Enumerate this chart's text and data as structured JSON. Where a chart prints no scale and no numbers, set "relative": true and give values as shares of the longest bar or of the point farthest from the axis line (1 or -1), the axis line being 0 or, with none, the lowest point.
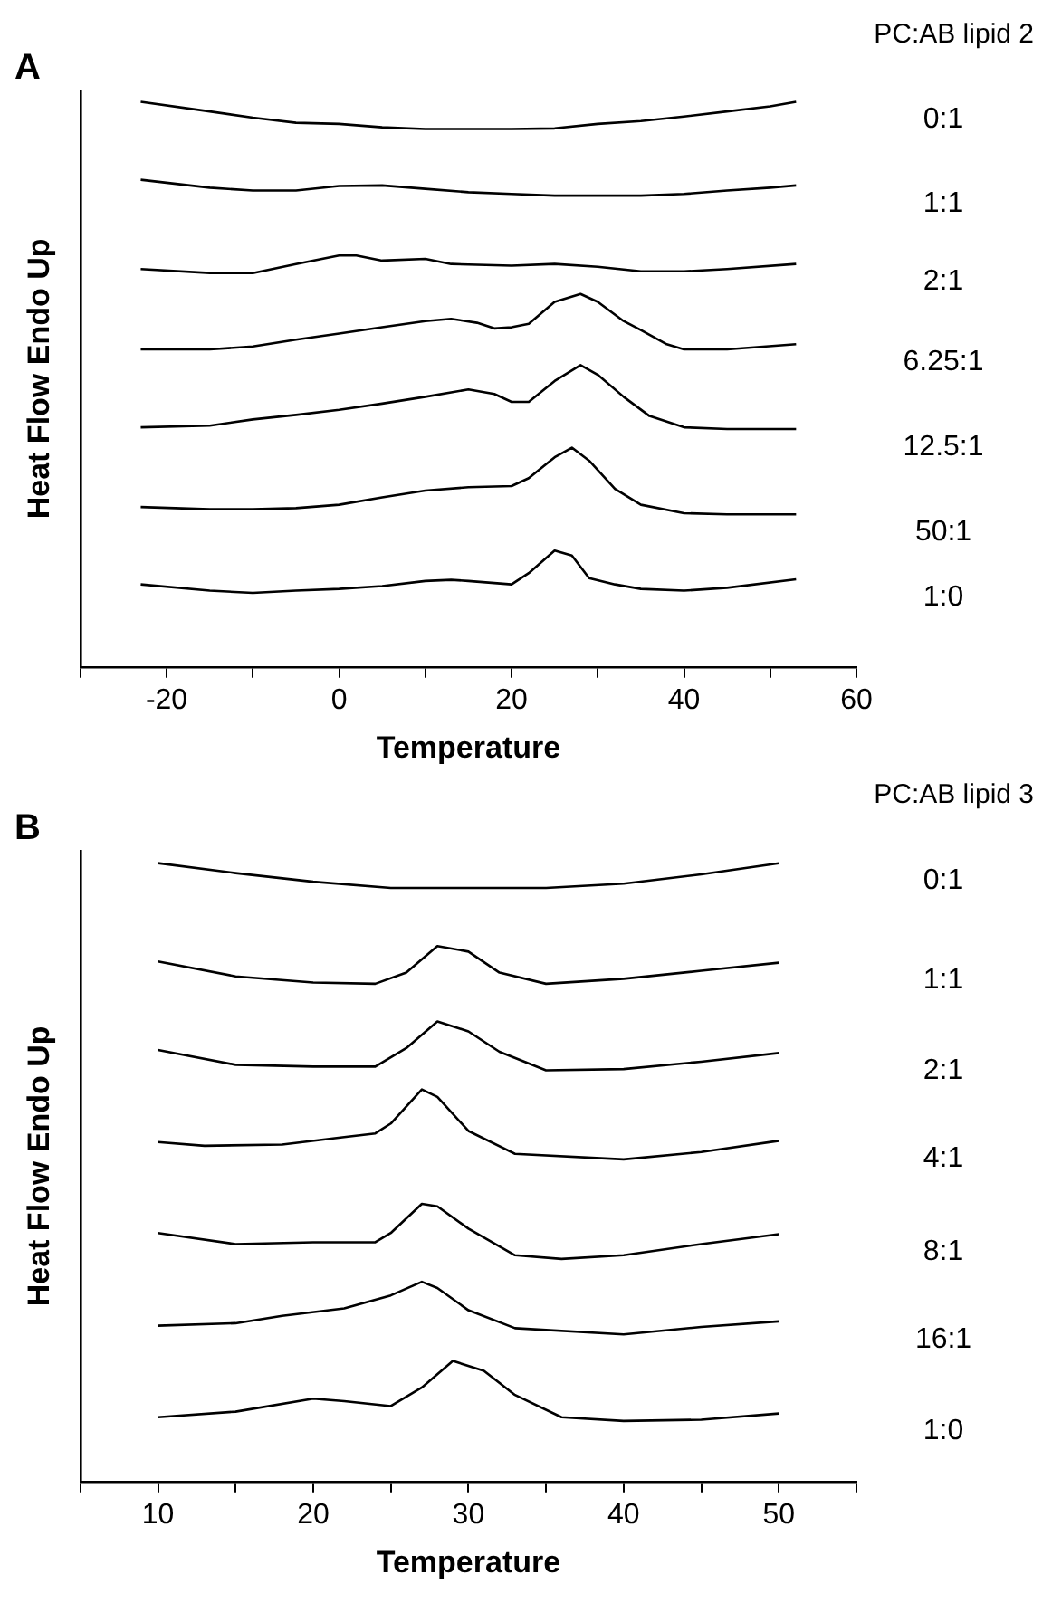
{
  "chart_data": [
    {
      "type": "line",
      "title": "A",
      "legend_title": "PC:AB lipid 2",
      "xlabel": "Temperature",
      "ylabel": "Heat Flow Endo Up",
      "relative": true,
      "marker": "none",
      "legend": false,
      "xlim": [
        -30,
        60
      ],
      "xticks": [
        {
          "value": -30,
          "label": null
        },
        -20,
        {
          "value": -10,
          "label": null
        },
        0,
        {
          "value": 10,
          "label": null
        },
        20,
        {
          "value": 30,
          "label": null
        },
        40,
        {
          "value": 50,
          "label": null
        },
        60
      ],
      "series": [
        {
          "name": "0:1",
          "color": "#000000",
          "x": [
            -23,
            -15,
            -10,
            -5,
            0,
            5,
            10,
            15,
            20,
            25,
            30,
            35,
            40,
            45,
            50,
            53
          ],
          "values": [
            1.0,
            0.983,
            0.972,
            0.963,
            0.961,
            0.955,
            0.952,
            0.952,
            0.952,
            0.953,
            0.961,
            0.966,
            0.974,
            0.983,
            0.992,
            1.0
          ]
        },
        {
          "name": "1:1",
          "color": "#000000",
          "x": [
            -23,
            -15,
            -10,
            -5,
            0,
            5,
            10,
            15,
            20,
            25,
            30,
            35,
            40,
            45,
            50,
            53
          ],
          "values": [
            0.862,
            0.848,
            0.843,
            0.843,
            0.851,
            0.852,
            0.846,
            0.84,
            0.837,
            0.834,
            0.834,
            0.834,
            0.837,
            0.843,
            0.848,
            0.852
          ]
        },
        {
          "name": "2:1",
          "color": "#000000",
          "x": [
            -23,
            -15,
            -10,
            -5,
            0,
            2,
            5,
            10,
            13,
            20,
            25,
            30,
            35,
            40,
            45,
            53
          ],
          "values": [
            0.704,
            0.697,
            0.697,
            0.713,
            0.728,
            0.728,
            0.719,
            0.722,
            0.713,
            0.71,
            0.713,
            0.708,
            0.7,
            0.7,
            0.704,
            0.713
          ]
        },
        {
          "name": "6.25:1",
          "color": "#000000",
          "x": [
            -23,
            -15,
            -10,
            -5,
            0,
            5,
            10,
            13,
            16,
            18,
            20,
            22,
            25,
            28,
            30,
            33,
            35,
            38,
            40,
            45,
            53
          ],
          "values": [
            0.562,
            0.562,
            0.567,
            0.579,
            0.59,
            0.601,
            0.612,
            0.616,
            0.609,
            0.599,
            0.601,
            0.607,
            0.646,
            0.66,
            0.646,
            0.612,
            0.596,
            0.571,
            0.562,
            0.562,
            0.571
          ]
        },
        {
          "name": "12.5:1",
          "color": "#000000",
          "x": [
            -23,
            -15,
            -10,
            -5,
            0,
            5,
            10,
            15,
            18,
            20,
            22,
            25,
            28,
            30,
            33,
            36,
            40,
            45,
            53
          ],
          "values": [
            0.424,
            0.427,
            0.438,
            0.446,
            0.455,
            0.466,
            0.478,
            0.491,
            0.483,
            0.469,
            0.469,
            0.506,
            0.534,
            0.517,
            0.478,
            0.444,
            0.424,
            0.421,
            0.421
          ]
        },
        {
          "name": "50:1",
          "color": "#000000",
          "x": [
            -23,
            -15,
            -10,
            -5,
            0,
            5,
            10,
            15,
            20,
            22,
            25,
            27,
            29,
            32,
            35,
            40,
            45,
            53
          ],
          "values": [
            0.283,
            0.279,
            0.279,
            0.281,
            0.287,
            0.3,
            0.312,
            0.318,
            0.32,
            0.334,
            0.371,
            0.388,
            0.365,
            0.315,
            0.287,
            0.272,
            0.27,
            0.27
          ]
        },
        {
          "name": "1:0",
          "color": "#000000",
          "x": [
            -23,
            -15,
            -10,
            -5,
            0,
            5,
            10,
            13,
            15,
            20,
            22,
            25,
            27,
            29,
            32,
            35,
            40,
            45,
            53
          ],
          "values": [
            0.146,
            0.135,
            0.131,
            0.135,
            0.138,
            0.143,
            0.152,
            0.154,
            0.152,
            0.146,
            0.166,
            0.206,
            0.197,
            0.157,
            0.146,
            0.138,
            0.135,
            0.14,
            0.155
          ]
        }
      ]
    },
    {
      "type": "line",
      "title": "B",
      "legend_title": "PC:AB lipid 3",
      "xlabel": "Temperature",
      "ylabel": "Heat Flow Endo Up",
      "relative": true,
      "marker": "none",
      "legend": false,
      "xlim": [
        5,
        55
      ],
      "xticks": [
        {
          "value": 5,
          "label": null
        },
        10,
        {
          "value": 15,
          "label": null
        },
        20,
        {
          "value": 25,
          "label": null
        },
        30,
        {
          "value": 35,
          "label": null
        },
        40,
        {
          "value": 45,
          "label": null
        },
        50,
        {
          "value": 55,
          "label": null
        }
      ],
      "series": [
        {
          "name": "0:1",
          "color": "#000000",
          "x": [
            10,
            15,
            20,
            25,
            30,
            35,
            40,
            45,
            50
          ],
          "values": [
            1.0,
            0.984,
            0.97,
            0.96,
            0.96,
            0.96,
            0.967,
            0.982,
            1.0
          ]
        },
        {
          "name": "1:1",
          "color": "#000000",
          "x": [
            10,
            15,
            20,
            24,
            26,
            28,
            30,
            32,
            35,
            40,
            45,
            50
          ],
          "values": [
            0.841,
            0.817,
            0.807,
            0.805,
            0.823,
            0.866,
            0.857,
            0.823,
            0.805,
            0.813,
            0.826,
            0.839
          ]
        },
        {
          "name": "2:1",
          "color": "#000000",
          "x": [
            10,
            15,
            20,
            24,
            26,
            28,
            30,
            32,
            35,
            40,
            45,
            50
          ],
          "values": [
            0.698,
            0.674,
            0.671,
            0.671,
            0.701,
            0.744,
            0.728,
            0.695,
            0.665,
            0.667,
            0.679,
            0.693
          ]
        },
        {
          "name": "4:1",
          "color": "#000000",
          "x": [
            10,
            13,
            18,
            22,
            24,
            25,
            27,
            28,
            30,
            33,
            40,
            45,
            50
          ],
          "values": [
            0.549,
            0.543,
            0.545,
            0.557,
            0.563,
            0.579,
            0.634,
            0.622,
            0.567,
            0.53,
            0.521,
            0.533,
            0.551
          ]
        },
        {
          "name": "8:1",
          "color": "#000000",
          "x": [
            10,
            15,
            20,
            24,
            25,
            27,
            28,
            30,
            33,
            36,
            40,
            45,
            50
          ],
          "values": [
            0.402,
            0.384,
            0.387,
            0.387,
            0.402,
            0.449,
            0.445,
            0.409,
            0.366,
            0.36,
            0.366,
            0.384,
            0.4
          ]
        },
        {
          "name": "16:1",
          "color": "#000000",
          "x": [
            10,
            15,
            18,
            22,
            25,
            27,
            28,
            30,
            33,
            40,
            45,
            50
          ],
          "values": [
            0.252,
            0.256,
            0.268,
            0.28,
            0.301,
            0.323,
            0.313,
            0.277,
            0.248,
            0.238,
            0.25,
            0.259
          ]
        },
        {
          "name": "1:0",
          "color": "#000000",
          "x": [
            10,
            15,
            20,
            22,
            25,
            27,
            29,
            31,
            33,
            36,
            40,
            45,
            50
          ],
          "values": [
            0.104,
            0.113,
            0.134,
            0.13,
            0.122,
            0.152,
            0.195,
            0.179,
            0.14,
            0.104,
            0.098,
            0.1,
            0.11
          ]
        }
      ]
    }
  ]
}
